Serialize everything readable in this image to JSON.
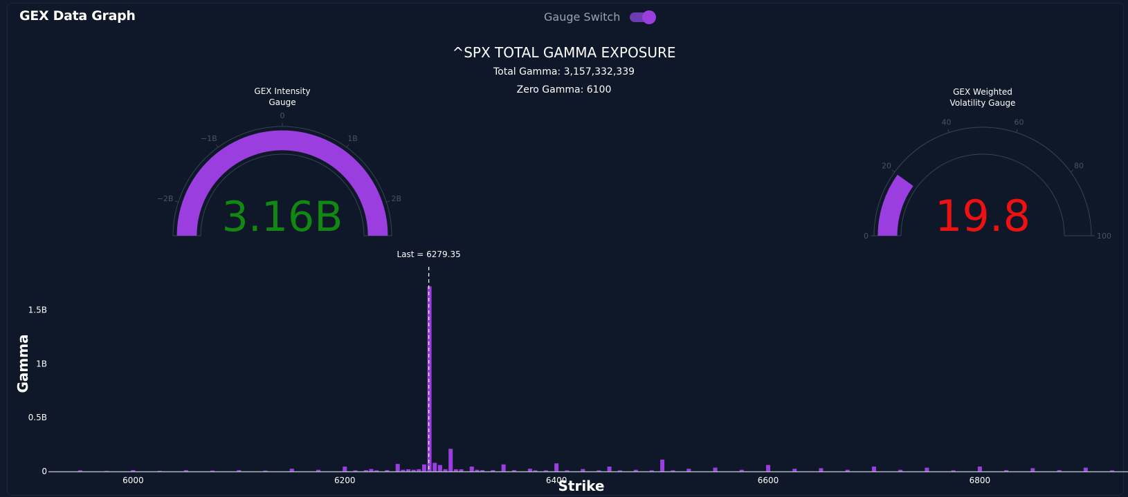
{
  "panel": {
    "title": "GEX Data Graph"
  },
  "gauge_switch": {
    "label": "Gauge Switch",
    "on": true
  },
  "chart_header": {
    "title": "^SPX TOTAL GAMMA EXPOSURE",
    "total_gamma": "Total Gamma: 3,157,332,339",
    "zero_gamma": "Zero Gamma: 6100"
  },
  "gauges": {
    "intensity": {
      "title_line1": "GEX Intensity",
      "title_line2": "Gauge",
      "value": 3157332339,
      "value_text": "3.16B",
      "min": -2500000000,
      "max": 2500000000,
      "ticks": [
        {
          "value": -2000000000,
          "label": "−2B"
        },
        {
          "value": -1000000000,
          "label": "−1B"
        },
        {
          "value": 0,
          "label": "0"
        },
        {
          "value": 1000000000,
          "label": "1B"
        },
        {
          "value": 2000000000,
          "label": "2B"
        }
      ],
      "bar_color": "#9b3ee0",
      "value_color": "#118811"
    },
    "volatility": {
      "title_line1": "GEX Weighted",
      "title_line2": "Volatility Gauge",
      "value": 19.8,
      "value_text": "19.8",
      "min": 0,
      "max": 100,
      "ticks": [
        {
          "value": 0,
          "label": "0"
        },
        {
          "value": 20,
          "label": "20"
        },
        {
          "value": 40,
          "label": "40"
        },
        {
          "value": 60,
          "label": "60"
        },
        {
          "value": 80,
          "label": "80"
        },
        {
          "value": 100,
          "label": "100"
        }
      ],
      "bar_color": "#9b3ee0",
      "value_color": "#ee1111"
    }
  },
  "chart_data": {
    "type": "bar",
    "xlabel": "Strike",
    "ylabel": "Gamma",
    "xlim": [
      5920,
      6940
    ],
    "ylim": [
      0,
      1.85
    ],
    "x_ticks": [
      {
        "value": 6000,
        "label": "6000"
      },
      {
        "value": 6200,
        "label": "6200"
      },
      {
        "value": 6400,
        "label": "6400"
      },
      {
        "value": 6600,
        "label": "6600"
      },
      {
        "value": 6800,
        "label": "6800"
      }
    ],
    "y_ticks": [
      {
        "value": 0,
        "label": "0"
      },
      {
        "value": 0.5,
        "label": "0.5B"
      },
      {
        "value": 1,
        "label": "1B"
      },
      {
        "value": 1.5,
        "label": "1.5B"
      }
    ],
    "bar_color": "#9b3ee0",
    "last_line": {
      "x": 6279.35,
      "label": "Last = 6279.35"
    },
    "bars": [
      {
        "x": 5950,
        "y": 0.01
      },
      {
        "x": 5975,
        "y": 0.005
      },
      {
        "x": 6000,
        "y": 0.012
      },
      {
        "x": 6025,
        "y": 0.006
      },
      {
        "x": 6050,
        "y": 0.012
      },
      {
        "x": 6075,
        "y": 0.008
      },
      {
        "x": 6100,
        "y": 0.012
      },
      {
        "x": 6125,
        "y": 0.008
      },
      {
        "x": 6150,
        "y": 0.025
      },
      {
        "x": 6175,
        "y": 0.015
      },
      {
        "x": 6200,
        "y": 0.045
      },
      {
        "x": 6210,
        "y": 0.01
      },
      {
        "x": 6220,
        "y": 0.012
      },
      {
        "x": 6225,
        "y": 0.022
      },
      {
        "x": 6230,
        "y": 0.01
      },
      {
        "x": 6240,
        "y": 0.012
      },
      {
        "x": 6250,
        "y": 0.07
      },
      {
        "x": 6255,
        "y": 0.015
      },
      {
        "x": 6260,
        "y": 0.02
      },
      {
        "x": 6265,
        "y": 0.015
      },
      {
        "x": 6270,
        "y": 0.02
      },
      {
        "x": 6275,
        "y": 0.065
      },
      {
        "x": 6280,
        "y": 1.72
      },
      {
        "x": 6285,
        "y": 0.08
      },
      {
        "x": 6290,
        "y": 0.06
      },
      {
        "x": 6295,
        "y": 0.02
      },
      {
        "x": 6300,
        "y": 0.21
      },
      {
        "x": 6305,
        "y": 0.02
      },
      {
        "x": 6310,
        "y": 0.02
      },
      {
        "x": 6320,
        "y": 0.045
      },
      {
        "x": 6325,
        "y": 0.015
      },
      {
        "x": 6330,
        "y": 0.012
      },
      {
        "x": 6340,
        "y": 0.012
      },
      {
        "x": 6350,
        "y": 0.065
      },
      {
        "x": 6360,
        "y": 0.012
      },
      {
        "x": 6375,
        "y": 0.025
      },
      {
        "x": 6380,
        "y": 0.01
      },
      {
        "x": 6390,
        "y": 0.01
      },
      {
        "x": 6400,
        "y": 0.075
      },
      {
        "x": 6410,
        "y": 0.01
      },
      {
        "x": 6425,
        "y": 0.022
      },
      {
        "x": 6440,
        "y": 0.01
      },
      {
        "x": 6450,
        "y": 0.045
      },
      {
        "x": 6460,
        "y": 0.01
      },
      {
        "x": 6475,
        "y": 0.015
      },
      {
        "x": 6490,
        "y": 0.01
      },
      {
        "x": 6500,
        "y": 0.11
      },
      {
        "x": 6510,
        "y": 0.01
      },
      {
        "x": 6525,
        "y": 0.025
      },
      {
        "x": 6550,
        "y": 0.035
      },
      {
        "x": 6575,
        "y": 0.015
      },
      {
        "x": 6600,
        "y": 0.06
      },
      {
        "x": 6625,
        "y": 0.025
      },
      {
        "x": 6650,
        "y": 0.03
      },
      {
        "x": 6675,
        "y": 0.015
      },
      {
        "x": 6700,
        "y": 0.045
      },
      {
        "x": 6725,
        "y": 0.015
      },
      {
        "x": 6750,
        "y": 0.035
      },
      {
        "x": 6775,
        "y": 0.01
      },
      {
        "x": 6800,
        "y": 0.045
      },
      {
        "x": 6825,
        "y": 0.012
      },
      {
        "x": 6850,
        "y": 0.03
      },
      {
        "x": 6875,
        "y": 0.012
      },
      {
        "x": 6900,
        "y": 0.035
      },
      {
        "x": 6925,
        "y": 0.01
      }
    ]
  }
}
